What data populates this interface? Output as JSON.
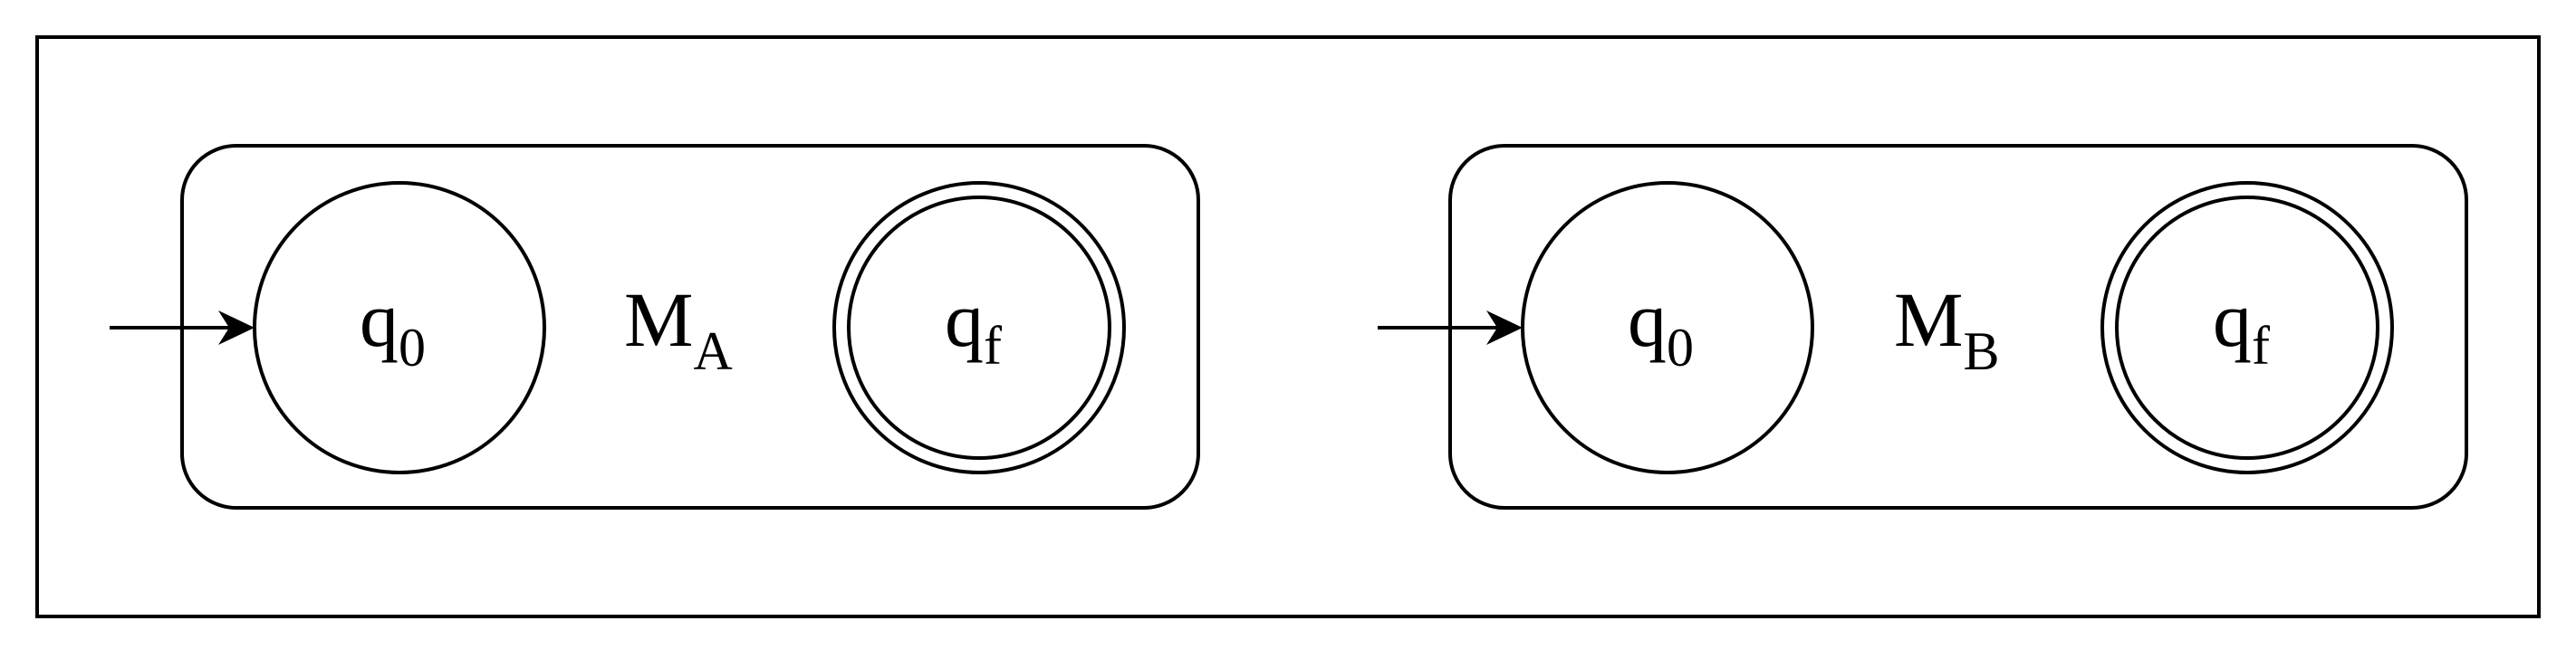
{
  "colors": {
    "stroke": "#000000",
    "background": "#ffffff"
  },
  "automata": [
    {
      "name": {
        "base": "M",
        "sub": "A"
      },
      "start_state": {
        "base": "q",
        "sub": "0"
      },
      "final_state": {
        "base": "q",
        "sub": "f"
      }
    },
    {
      "name": {
        "base": "M",
        "sub": "B"
      },
      "start_state": {
        "base": "q",
        "sub": "0"
      },
      "final_state": {
        "base": "q",
        "sub": "f"
      }
    }
  ]
}
